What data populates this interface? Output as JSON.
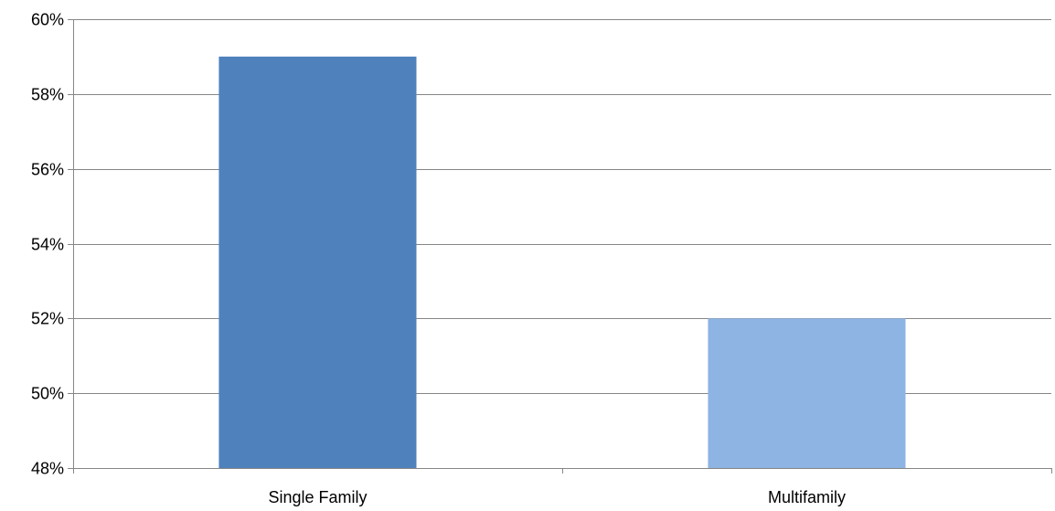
{
  "chart_data": {
    "type": "bar",
    "title": "",
    "xlabel": "",
    "ylabel": "",
    "categories": [
      "Single Family",
      "Multifamily"
    ],
    "values": [
      59,
      52
    ],
    "value_unit": "%",
    "ylim": [
      48,
      60
    ],
    "yticks": [
      48,
      50,
      52,
      54,
      56,
      58,
      60
    ],
    "ytick_labels": [
      "48%",
      "50%",
      "52%",
      "54%",
      "56%",
      "58%",
      "60%"
    ],
    "grid": true,
    "legend": "none",
    "colors": {
      "bars": [
        "#4f81bd",
        "#8eb4e3"
      ],
      "grid": "#868686",
      "axis": "#868686"
    }
  }
}
